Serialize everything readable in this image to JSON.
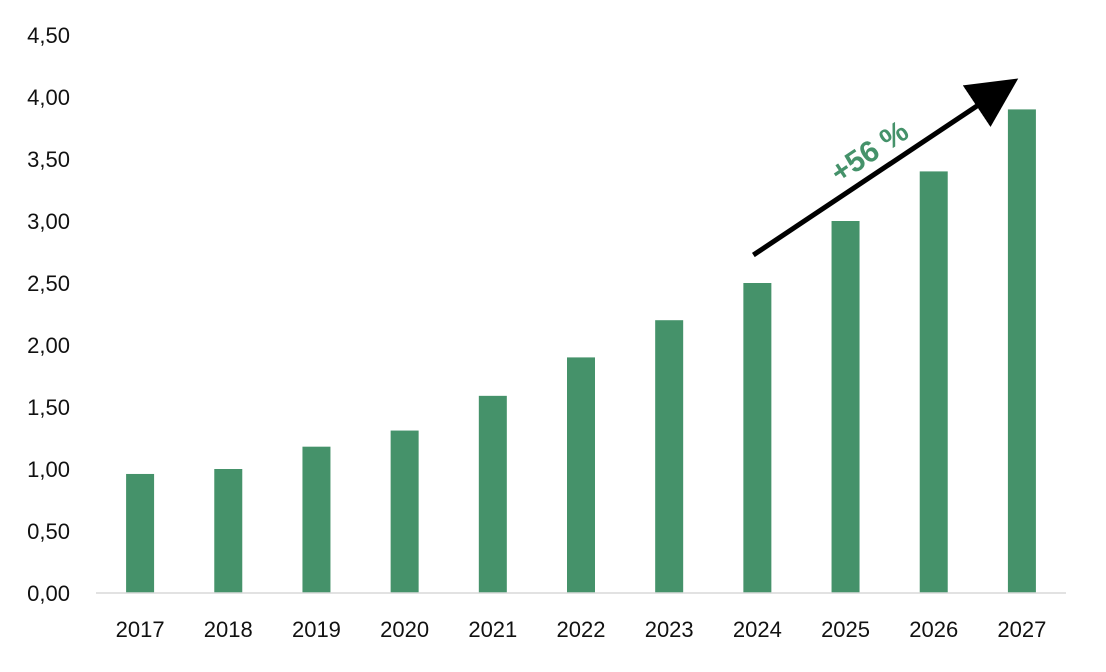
{
  "chart_data": {
    "type": "bar",
    "title": "",
    "xlabel": "",
    "ylabel": "",
    "categories": [
      "2017",
      "2018",
      "2019",
      "2020",
      "2021",
      "2022",
      "2023",
      "2024",
      "2025",
      "2026",
      "2027"
    ],
    "values": [
      0.96,
      1.0,
      1.18,
      1.31,
      1.59,
      1.9,
      2.2,
      2.5,
      3.0,
      3.4,
      3.9
    ],
    "ylim": [
      0,
      4.5
    ],
    "y_ticks": [
      "0,00",
      "0,50",
      "1,00",
      "1,50",
      "2,00",
      "2,50",
      "3,00",
      "3,50",
      "4,00",
      "4,50"
    ],
    "grid": false,
    "legend": false,
    "bar_color": "#45926A",
    "annotation": {
      "text": "+56 %",
      "color": "#45926A",
      "arrow_color": "#000000",
      "from_category": "2024",
      "to_category": "2027"
    }
  }
}
